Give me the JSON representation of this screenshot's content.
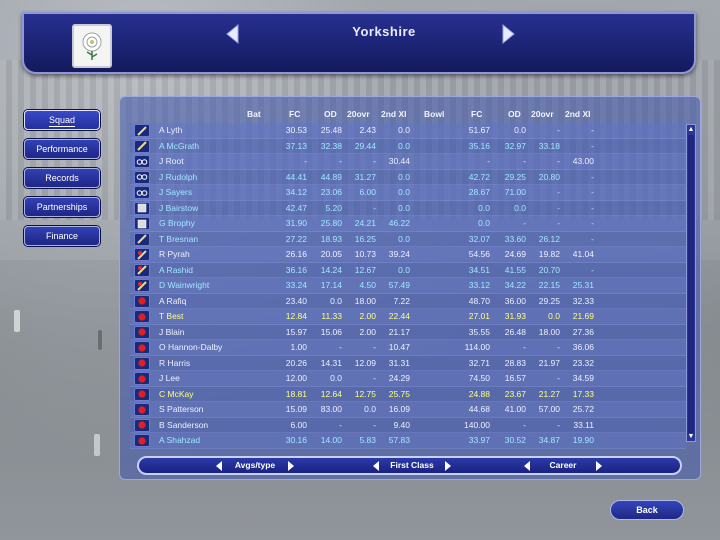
{
  "header": {
    "title": "Yorkshire",
    "crest_icon": "white-rose-icon"
  },
  "menu": {
    "items": [
      {
        "label": "Squad",
        "active": true
      },
      {
        "label": "Performance",
        "active": false
      },
      {
        "label": "Records",
        "active": false
      },
      {
        "label": "Partnerships",
        "active": false
      },
      {
        "label": "Finance",
        "active": false
      }
    ]
  },
  "table": {
    "columns": [
      "Bat",
      "FC",
      "OD",
      "20ovr",
      "2nd XI",
      "Bowl",
      "FC",
      "OD",
      "20ovr",
      "2nd XI"
    ],
    "rows": [
      {
        "role": "bat",
        "name": "A Lyth",
        "bat_fc": "30.53",
        "bat_od": "25.48",
        "bat_20": "2.43",
        "bat_2xi": "0.0",
        "bowl_fc": "51.67",
        "bowl_od": "0.0",
        "bowl_20": "-",
        "bowl_2xi": "-",
        "highlight": "none"
      },
      {
        "role": "bat",
        "name": "A McGrath",
        "bat_fc": "37.13",
        "bat_od": "32.38",
        "bat_20": "29.44",
        "bat_2xi": "0.0",
        "bowl_fc": "35.16",
        "bowl_od": "32.97",
        "bowl_20": "33.18",
        "bowl_2xi": "-",
        "highlight": "cyan"
      },
      {
        "role": "wk",
        "name": "J Root",
        "bat_fc": "-",
        "bat_od": "-",
        "bat_20": "-",
        "bat_2xi": "30.44",
        "bowl_fc": "-",
        "bowl_od": "-",
        "bowl_20": "-",
        "bowl_2xi": "43.00",
        "highlight": "none"
      },
      {
        "role": "wk",
        "name": "J Rudolph",
        "bat_fc": "44.41",
        "bat_od": "44.89",
        "bat_20": "31.27",
        "bat_2xi": "0.0",
        "bowl_fc": "42.72",
        "bowl_od": "29.25",
        "bowl_20": "20.80",
        "bowl_2xi": "-",
        "highlight": "cyan"
      },
      {
        "role": "wk",
        "name": "J Sayers",
        "bat_fc": "34.12",
        "bat_od": "23.06",
        "bat_20": "6.00",
        "bat_2xi": "0.0",
        "bowl_fc": "28.67",
        "bowl_od": "71.00",
        "bowl_20": "-",
        "bowl_2xi": "-",
        "highlight": "cyan"
      },
      {
        "role": "keeper",
        "name": "J Bairstow",
        "bat_fc": "42.47",
        "bat_od": "5.20",
        "bat_20": "-",
        "bat_2xi": "0.0",
        "bowl_fc": "0.0",
        "bowl_od": "0.0",
        "bowl_20": "-",
        "bowl_2xi": "-",
        "highlight": "cyan"
      },
      {
        "role": "keeper",
        "name": "G Brophy",
        "bat_fc": "31.90",
        "bat_od": "25.80",
        "bat_20": "24.21",
        "bat_2xi": "46.22",
        "bowl_fc": "0.0",
        "bowl_od": "-",
        "bowl_20": "-",
        "bowl_2xi": "-",
        "highlight": "cyan"
      },
      {
        "role": "bat",
        "name": "T Bresnan",
        "bat_fc": "27.22",
        "bat_od": "18.93",
        "bat_20": "16.25",
        "bat_2xi": "0.0",
        "bowl_fc": "32.07",
        "bowl_od": "33.60",
        "bowl_20": "26.12",
        "bowl_2xi": "-",
        "highlight": "cyan"
      },
      {
        "role": "allround",
        "name": "R Pyrah",
        "bat_fc": "26.16",
        "bat_od": "20.05",
        "bat_20": "10.73",
        "bat_2xi": "39.24",
        "bowl_fc": "54.56",
        "bowl_od": "24.69",
        "bowl_20": "19.82",
        "bowl_2xi": "41.04",
        "highlight": "none"
      },
      {
        "role": "allround",
        "name": "A Rashid",
        "bat_fc": "36.16",
        "bat_od": "14.24",
        "bat_20": "12.67",
        "bat_2xi": "0.0",
        "bowl_fc": "34.51",
        "bowl_od": "41.55",
        "bowl_20": "20.70",
        "bowl_2xi": "-",
        "highlight": "cyan"
      },
      {
        "role": "allround",
        "name": "D Wainwright",
        "bat_fc": "33.24",
        "bat_od": "17.14",
        "bat_20": "4.50",
        "bat_2xi": "57.49",
        "bowl_fc": "33.12",
        "bowl_od": "34.22",
        "bowl_20": "22.15",
        "bowl_2xi": "25.31",
        "highlight": "cyan"
      },
      {
        "role": "bowl",
        "name": "A Rafiq",
        "bat_fc": "23.40",
        "bat_od": "0.0",
        "bat_20": "18.00",
        "bat_2xi": "7.22",
        "bowl_fc": "48.70",
        "bowl_od": "36.00",
        "bowl_20": "29.25",
        "bowl_2xi": "32.33",
        "highlight": "none"
      },
      {
        "role": "bowl",
        "name": "T Best",
        "bat_fc": "12.84",
        "bat_od": "11.33",
        "bat_20": "2.00",
        "bat_2xi": "22.44",
        "bowl_fc": "27.01",
        "bowl_od": "31.93",
        "bowl_20": "0.0",
        "bowl_2xi": "21.69",
        "highlight": "yellow"
      },
      {
        "role": "bowl",
        "name": "J Blain",
        "bat_fc": "15.97",
        "bat_od": "15.06",
        "bat_20": "2.00",
        "bat_2xi": "21.17",
        "bowl_fc": "35.55",
        "bowl_od": "26.48",
        "bowl_20": "18.00",
        "bowl_2xi": "27.36",
        "highlight": "none"
      },
      {
        "role": "bowl",
        "name": "O Hannon-Dalby",
        "bat_fc": "1.00",
        "bat_od": "-",
        "bat_20": "-",
        "bat_2xi": "10.47",
        "bowl_fc": "114.00",
        "bowl_od": "-",
        "bowl_20": "-",
        "bowl_2xi": "36.06",
        "highlight": "none"
      },
      {
        "role": "bowl",
        "name": "R Harris",
        "bat_fc": "20.26",
        "bat_od": "14.31",
        "bat_20": "12.09",
        "bat_2xi": "31.31",
        "bowl_fc": "32.71",
        "bowl_od": "28.83",
        "bowl_20": "21.97",
        "bowl_2xi": "23.32",
        "highlight": "none"
      },
      {
        "role": "bowl",
        "name": "J Lee",
        "bat_fc": "12.00",
        "bat_od": "0.0",
        "bat_20": "-",
        "bat_2xi": "24.29",
        "bowl_fc": "74.50",
        "bowl_od": "16.57",
        "bowl_20": "-",
        "bowl_2xi": "34.59",
        "highlight": "none"
      },
      {
        "role": "bowl",
        "name": "C McKay",
        "bat_fc": "18.81",
        "bat_od": "12.64",
        "bat_20": "12.75",
        "bat_2xi": "25.75",
        "bowl_fc": "24.88",
        "bowl_od": "23.67",
        "bowl_20": "21.27",
        "bowl_2xi": "17.33",
        "highlight": "yellow"
      },
      {
        "role": "bowl",
        "name": "S Patterson",
        "bat_fc": "15.09",
        "bat_od": "83.00",
        "bat_20": "0.0",
        "bat_2xi": "16.09",
        "bowl_fc": "44.68",
        "bowl_od": "41.00",
        "bowl_20": "57.00",
        "bowl_2xi": "25.72",
        "highlight": "none"
      },
      {
        "role": "bowl",
        "name": "B Sanderson",
        "bat_fc": "6.00",
        "bat_od": "-",
        "bat_20": "-",
        "bat_2xi": "9.40",
        "bowl_fc": "140.00",
        "bowl_od": "-",
        "bowl_20": "-",
        "bowl_2xi": "33.11",
        "highlight": "none"
      },
      {
        "role": "bowl",
        "name": "A Shahzad",
        "bat_fc": "30.16",
        "bat_od": "14.00",
        "bat_20": "5.83",
        "bat_2xi": "57.83",
        "bowl_fc": "33.97",
        "bowl_od": "30.52",
        "bowl_20": "34.87",
        "bowl_2xi": "19.90",
        "highlight": "cyan"
      }
    ]
  },
  "selectors": {
    "stat_type": "Avgs/type",
    "competition": "First Class",
    "period": "Career"
  },
  "back_label": "Back",
  "colors": {
    "highlight_cyan": "#9fe8ff",
    "highlight_yellow": "#ffff80",
    "header_bg": "#1b2272",
    "panel_bg": "#3e54ac"
  }
}
